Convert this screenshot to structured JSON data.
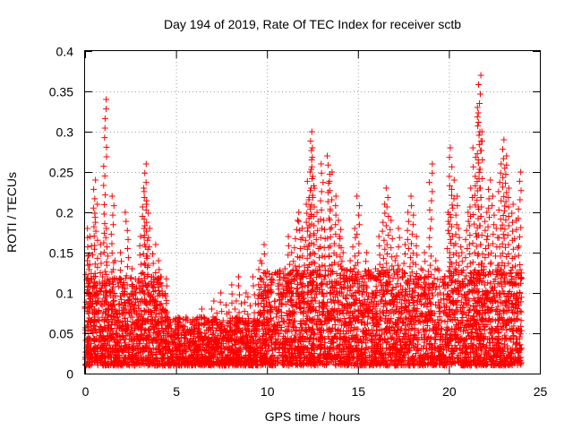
{
  "chart_data": {
    "type": "scatter",
    "title": "Day 194 of 2019, Rate Of TEC Index for receiver sctb",
    "xlabel": "GPS time / hours",
    "ylabel": "ROTI / TECUs",
    "xlim": [
      0,
      25
    ],
    "ylim": [
      0,
      0.4
    ],
    "xticks": [
      0,
      5,
      10,
      15,
      20,
      25
    ],
    "xtick_labels": [
      "0",
      "5",
      "10",
      "15",
      "20",
      "25"
    ],
    "yticks": [
      0,
      0.05,
      0.1,
      0.15,
      0.2,
      0.25,
      0.3,
      0.35,
      0.4
    ],
    "ytick_labels": [
      "0",
      "0.05",
      "0.1",
      "0.15",
      "0.2",
      "0.25",
      "0.3",
      "0.35",
      "0.4"
    ],
    "grid": true,
    "marker": "+",
    "color": "#ff0000",
    "series": [
      {
        "name": "ROTI",
        "points": [
          [
            0.1,
            0.18
          ],
          [
            0.2,
            0.14
          ],
          [
            0.3,
            0.17
          ],
          [
            0.4,
            0.12
          ],
          [
            0.5,
            0.24
          ],
          [
            0.5,
            0.09
          ],
          [
            0.6,
            0.21
          ],
          [
            0.7,
            0.1
          ],
          [
            0.8,
            0.16
          ],
          [
            1.0,
            0.12
          ],
          [
            1.1,
            0.34
          ],
          [
            1.2,
            0.18
          ],
          [
            1.3,
            0.08
          ],
          [
            1.5,
            0.22
          ],
          [
            1.6,
            0.14
          ],
          [
            1.8,
            0.07
          ],
          [
            2.0,
            0.15
          ],
          [
            2.2,
            0.11
          ],
          [
            2.3,
            0.2
          ],
          [
            2.5,
            0.09
          ],
          [
            2.6,
            0.13
          ],
          [
            2.8,
            0.1
          ],
          [
            3.0,
            0.17
          ],
          [
            3.2,
            0.23
          ],
          [
            3.3,
            0.26
          ],
          [
            3.4,
            0.21
          ],
          [
            3.5,
            0.18
          ],
          [
            3.6,
            0.12
          ],
          [
            3.8,
            0.16
          ],
          [
            3.9,
            0.09
          ],
          [
            4.0,
            0.14
          ],
          [
            4.2,
            0.12
          ],
          [
            4.3,
            0.08
          ],
          [
            4.5,
            0.07
          ],
          [
            4.6,
            0.06
          ],
          [
            4.8,
            0.05
          ],
          [
            5.0,
            0.045
          ],
          [
            5.2,
            0.04
          ],
          [
            5.4,
            0.035
          ],
          [
            5.6,
            0.04
          ],
          [
            5.8,
            0.05
          ],
          [
            6.0,
            0.055
          ],
          [
            6.2,
            0.07
          ],
          [
            6.5,
            0.08
          ],
          [
            6.8,
            0.065
          ],
          [
            7.0,
            0.09
          ],
          [
            7.2,
            0.075
          ],
          [
            7.5,
            0.1
          ],
          [
            7.8,
            0.085
          ],
          [
            8.0,
            0.11
          ],
          [
            8.3,
            0.09
          ],
          [
            8.5,
            0.12
          ],
          [
            8.8,
            0.1
          ],
          [
            9.0,
            0.095
          ],
          [
            9.3,
            0.12
          ],
          [
            9.6,
            0.14
          ],
          [
            9.8,
            0.16
          ],
          [
            10.0,
            0.12
          ],
          [
            10.2,
            0.1
          ],
          [
            10.5,
            0.09
          ],
          [
            10.8,
            0.11
          ],
          [
            11.0,
            0.13
          ],
          [
            11.2,
            0.17
          ],
          [
            11.4,
            0.15
          ],
          [
            11.6,
            0.19
          ],
          [
            11.8,
            0.2
          ],
          [
            12.0,
            0.18
          ],
          [
            12.2,
            0.21
          ],
          [
            12.3,
            0.25
          ],
          [
            12.4,
            0.3
          ],
          [
            12.5,
            0.28
          ],
          [
            12.6,
            0.23
          ],
          [
            12.8,
            0.2
          ],
          [
            13.0,
            0.26
          ],
          [
            13.2,
            0.19
          ],
          [
            13.4,
            0.27
          ],
          [
            13.5,
            0.25
          ],
          [
            13.7,
            0.22
          ],
          [
            13.9,
            0.17
          ],
          [
            14.0,
            0.19
          ],
          [
            14.2,
            0.15
          ],
          [
            14.4,
            0.12
          ],
          [
            14.6,
            0.14
          ],
          [
            14.8,
            0.18
          ],
          [
            15.0,
            0.22
          ],
          [
            15.2,
            0.12
          ],
          [
            15.5,
            0.15
          ],
          [
            15.8,
            0.1
          ],
          [
            16.0,
            0.13
          ],
          [
            16.2,
            0.17
          ],
          [
            16.4,
            0.21
          ],
          [
            16.6,
            0.23
          ],
          [
            16.8,
            0.19
          ],
          [
            17.0,
            0.14
          ],
          [
            17.2,
            0.18
          ],
          [
            17.4,
            0.12
          ],
          [
            17.6,
            0.16
          ],
          [
            17.8,
            0.2
          ],
          [
            18.0,
            0.22
          ],
          [
            18.2,
            0.17
          ],
          [
            18.4,
            0.13
          ],
          [
            18.6,
            0.15
          ],
          [
            18.8,
            0.11
          ],
          [
            19.0,
            0.26
          ],
          [
            19.2,
            0.14
          ],
          [
            19.5,
            0.1
          ],
          [
            19.8,
            0.12
          ],
          [
            20.0,
            0.2
          ],
          [
            20.1,
            0.28
          ],
          [
            20.2,
            0.24
          ],
          [
            20.4,
            0.22
          ],
          [
            20.6,
            0.18
          ],
          [
            20.8,
            0.15
          ],
          [
            21.0,
            0.2
          ],
          [
            21.2,
            0.23
          ],
          [
            21.4,
            0.28
          ],
          [
            21.6,
            0.33
          ],
          [
            21.7,
            0.37
          ],
          [
            21.8,
            0.3
          ],
          [
            22.0,
            0.2
          ],
          [
            22.2,
            0.24
          ],
          [
            22.4,
            0.22
          ],
          [
            22.6,
            0.18
          ],
          [
            22.8,
            0.26
          ],
          [
            23.0,
            0.29
          ],
          [
            23.1,
            0.27
          ],
          [
            23.3,
            0.23
          ],
          [
            23.5,
            0.21
          ],
          [
            23.7,
            0.19
          ],
          [
            23.9,
            0.25
          ]
        ]
      }
    ],
    "dense_band": [
      {
        "hours_from": 0.0,
        "hours_to": 4.5,
        "roti_from": 0.01,
        "roti_to": 0.12
      },
      {
        "hours_from": 4.5,
        "hours_to": 9.5,
        "roti_from": 0.01,
        "roti_to": 0.07
      },
      {
        "hours_from": 9.5,
        "hours_to": 24.0,
        "roti_from": 0.01,
        "roti_to": 0.13
      }
    ]
  }
}
